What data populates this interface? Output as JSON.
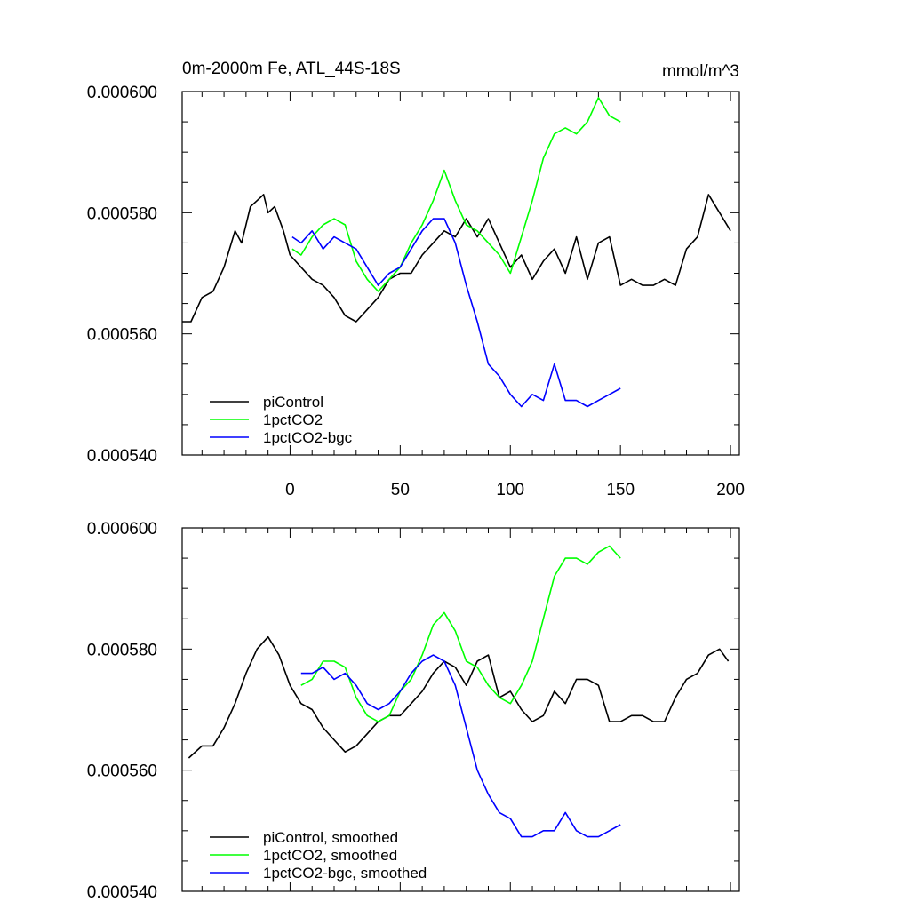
{
  "figure": {
    "title": "0m-2000m Fe, ATL_44S-18S",
    "units": "mmol/m^3"
  },
  "chart_data": [
    {
      "type": "line",
      "title": "0m-2000m Fe, ATL_44S-18S",
      "units": "mmol/m^3",
      "xlim": [
        -49,
        204
      ],
      "ylim": [
        0.00054,
        0.0006
      ],
      "xticks": [
        0,
        50,
        100,
        150,
        200
      ],
      "xtick_labels": [
        "0",
        "50",
        "100",
        "150",
        "200"
      ],
      "yticks": [
        0.00054,
        0.00056,
        0.00058,
        0.0006
      ],
      "ytick_labels": [
        "0.000540",
        "0.000560",
        "0.000580",
        "0.000600"
      ],
      "grid": false,
      "legend_position": "bottom-left",
      "series": [
        {
          "name": "piControl",
          "color": "#000000",
          "x": [
            -49,
            -45,
            -40,
            -35,
            -30,
            -25,
            -22,
            -18,
            -15,
            -12,
            -10,
            -7,
            -3,
            0,
            5,
            10,
            15,
            20,
            25,
            30,
            35,
            40,
            45,
            50,
            55,
            60,
            65,
            70,
            75,
            80,
            85,
            90,
            95,
            100,
            105,
            110,
            115,
            120,
            125,
            130,
            135,
            140,
            145,
            150,
            155,
            160,
            165,
            170,
            175,
            180,
            185,
            190,
            195,
            200
          ],
          "y": [
            0.000562,
            0.000562,
            0.000566,
            0.000567,
            0.000571,
            0.000577,
            0.000575,
            0.000581,
            0.000582,
            0.000583,
            0.00058,
            0.000581,
            0.000577,
            0.000573,
            0.000571,
            0.000569,
            0.000568,
            0.000566,
            0.000563,
            0.000562,
            0.000564,
            0.000566,
            0.000569,
            0.00057,
            0.00057,
            0.000573,
            0.000575,
            0.000577,
            0.000576,
            0.000579,
            0.000576,
            0.000579,
            0.000575,
            0.000571,
            0.000573,
            0.000569,
            0.000572,
            0.000574,
            0.00057,
            0.000576,
            0.000569,
            0.000575,
            0.000576,
            0.000568,
            0.000569,
            0.000568,
            0.000568,
            0.000569,
            0.000568,
            0.000574,
            0.000576,
            0.000583,
            0.00058,
            0.000577
          ]
        },
        {
          "name": "1pctCO2",
          "color": "#00ff00",
          "x": [
            1,
            5,
            10,
            15,
            20,
            25,
            30,
            35,
            40,
            45,
            50,
            55,
            60,
            65,
            70,
            75,
            80,
            85,
            90,
            95,
            100,
            105,
            110,
            115,
            120,
            125,
            130,
            135,
            140,
            145,
            150
          ],
          "y": [
            0.000574,
            0.000573,
            0.000576,
            0.000578,
            0.000579,
            0.000578,
            0.000572,
            0.000569,
            0.000567,
            0.000569,
            0.000571,
            0.000575,
            0.000578,
            0.000582,
            0.000587,
            0.000582,
            0.000578,
            0.000577,
            0.000575,
            0.000573,
            0.00057,
            0.000576,
            0.000582,
            0.000589,
            0.000593,
            0.000594,
            0.000593,
            0.000595,
            0.000599,
            0.000596,
            0.000595
          ]
        },
        {
          "name": "1pctCO2-bgc",
          "color": "#0000ff",
          "x": [
            1,
            5,
            10,
            15,
            20,
            25,
            30,
            35,
            40,
            45,
            50,
            55,
            60,
            65,
            70,
            75,
            80,
            85,
            90,
            95,
            100,
            105,
            110,
            115,
            120,
            125,
            130,
            135,
            140,
            145,
            150
          ],
          "y": [
            0.000576,
            0.000575,
            0.000577,
            0.000574,
            0.000576,
            0.000575,
            0.000574,
            0.000571,
            0.000568,
            0.00057,
            0.000571,
            0.000574,
            0.000577,
            0.000579,
            0.000579,
            0.000575,
            0.000568,
            0.000562,
            0.000555,
            0.000553,
            0.00055,
            0.000548,
            0.00055,
            0.000549,
            0.000555,
            0.000549,
            0.000549,
            0.000548,
            0.000549,
            0.00055,
            0.000551
          ]
        }
      ]
    },
    {
      "type": "line",
      "xlim": [
        -49,
        204
      ],
      "ylim": [
        0.00054,
        0.0006
      ],
      "xticks": [
        0,
        50,
        100,
        150,
        200
      ],
      "yticks": [
        0.00054,
        0.00056,
        0.00058,
        0.0006
      ],
      "ytick_labels": [
        "0.000540",
        "0.000560",
        "0.000580",
        "0.000600"
      ],
      "grid": false,
      "legend_position": "bottom-left",
      "series": [
        {
          "name": "piControl, smoothed",
          "color": "#000000",
          "x": [
            -46,
            -40,
            -35,
            -30,
            -25,
            -20,
            -15,
            -10,
            -5,
            0,
            5,
            10,
            15,
            20,
            25,
            30,
            35,
            40,
            45,
            50,
            55,
            60,
            65,
            70,
            75,
            80,
            85,
            90,
            95,
            100,
            105,
            110,
            115,
            120,
            125,
            130,
            135,
            140,
            145,
            150,
            155,
            160,
            165,
            170,
            175,
            180,
            185,
            190,
            195,
            199
          ],
          "y": [
            0.000562,
            0.000564,
            0.000564,
            0.000567,
            0.000571,
            0.000576,
            0.00058,
            0.000582,
            0.000579,
            0.000574,
            0.000571,
            0.00057,
            0.000567,
            0.000565,
            0.000563,
            0.000564,
            0.000566,
            0.000568,
            0.000569,
            0.000569,
            0.000571,
            0.000573,
            0.000576,
            0.000578,
            0.000577,
            0.000574,
            0.000578,
            0.000579,
            0.000572,
            0.000573,
            0.00057,
            0.000568,
            0.000569,
            0.000573,
            0.000571,
            0.000575,
            0.000575,
            0.000574,
            0.000568,
            0.000568,
            0.000569,
            0.000569,
            0.000568,
            0.000568,
            0.000572,
            0.000575,
            0.000576,
            0.000579,
            0.00058,
            0.000578
          ]
        },
        {
          "name": "1pctCO2, smoothed",
          "color": "#00ff00",
          "x": [
            5,
            10,
            15,
            20,
            25,
            30,
            35,
            40,
            45,
            50,
            55,
            60,
            65,
            70,
            75,
            80,
            85,
            90,
            95,
            100,
            105,
            110,
            115,
            120,
            125,
            130,
            135,
            140,
            145,
            150
          ],
          "y": [
            0.000574,
            0.000575,
            0.000578,
            0.000578,
            0.000577,
            0.000572,
            0.000569,
            0.000568,
            0.000569,
            0.000573,
            0.000575,
            0.000579,
            0.000584,
            0.000586,
            0.000583,
            0.000578,
            0.000577,
            0.000574,
            0.000572,
            0.000571,
            0.000574,
            0.000578,
            0.000585,
            0.000592,
            0.000595,
            0.000595,
            0.000594,
            0.000596,
            0.000597,
            0.000595
          ]
        },
        {
          "name": "1pctCO2-bgc, smoothed",
          "color": "#0000ff",
          "x": [
            5,
            10,
            15,
            20,
            25,
            30,
            35,
            40,
            45,
            50,
            55,
            60,
            65,
            70,
            75,
            80,
            85,
            90,
            95,
            100,
            105,
            110,
            115,
            120,
            125,
            130,
            135,
            140,
            145,
            150
          ],
          "y": [
            0.000576,
            0.000576,
            0.000577,
            0.000575,
            0.000576,
            0.000574,
            0.000571,
            0.00057,
            0.000571,
            0.000573,
            0.000576,
            0.000578,
            0.000579,
            0.000578,
            0.000574,
            0.000567,
            0.00056,
            0.000556,
            0.000553,
            0.000552,
            0.000549,
            0.000549,
            0.00055,
            0.00055,
            0.000553,
            0.00055,
            0.000549,
            0.000549,
            0.00055,
            0.000551
          ]
        }
      ]
    }
  ]
}
